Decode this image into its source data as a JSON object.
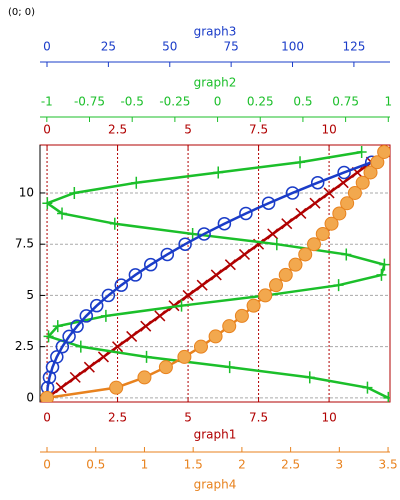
{
  "chart_data": {
    "type": "line",
    "annotation": "(0; 0)",
    "ylim": [
      -0.2,
      12.34
    ],
    "yticks": [
      0,
      2.5,
      5,
      7.5,
      10
    ],
    "grid": true,
    "x_axes": [
      {
        "label": "graph1",
        "color": "#b00000",
        "lim": [
          -0.25,
          12.16
        ],
        "ticks": [
          0,
          2.5,
          5,
          7.5,
          10
        ],
        "position": "bottom"
      },
      {
        "label": "graph2",
        "color": "#1bbf2a",
        "lim": [
          -1.04,
          1.01
        ],
        "ticks": [
          -1,
          -0.75,
          -0.5,
          -0.25,
          0,
          0.25,
          0.5,
          0.75,
          1
        ],
        "position": "top"
      },
      {
        "label": "graph3",
        "color": "#1a3cc8",
        "lim": [
          -2.85,
          139.7
        ],
        "ticks": [
          0,
          25,
          50,
          75,
          100,
          125
        ],
        "position": "top"
      },
      {
        "label": "graph4",
        "color": "#e8821e",
        "lim": [
          -0.072,
          3.52
        ],
        "ticks": [
          0,
          0.5,
          1,
          1.5,
          2,
          2.5,
          3,
          3.5
        ],
        "position": "bottom"
      }
    ],
    "series": [
      {
        "x_axis": 0,
        "color": "#b00000",
        "marker": "cross",
        "x": [
          0,
          0.5,
          1,
          1.5,
          2,
          2.5,
          3,
          3.5,
          4,
          4.5,
          5,
          5.5,
          6,
          6.5,
          7,
          7.5,
          8,
          8.5,
          9,
          9.5,
          10,
          10.5,
          11,
          11.5,
          12
        ],
        "values": [
          0,
          0.5,
          1,
          1.5,
          2,
          2.5,
          3,
          3.5,
          4,
          4.5,
          5,
          5.5,
          6,
          6.5,
          7,
          7.5,
          8,
          8.5,
          9,
          9.5,
          10,
          10.5,
          11,
          11.5,
          12
        ]
      },
      {
        "x_axis": 1,
        "color": "#1bbf2a",
        "marker": "plus",
        "x": [
          1,
          0.878,
          0.54,
          0.071,
          -0.416,
          -0.801,
          -0.99,
          -0.936,
          -0.654,
          -0.211,
          0.284,
          0.709,
          0.96,
          0.977,
          0.754,
          0.347,
          -0.146,
          -0.602,
          -0.911,
          -0.997,
          -0.839,
          -0.476,
          0.004,
          0.483,
          0.844
        ],
        "values": [
          0,
          0.5,
          1,
          1.5,
          2,
          2.5,
          3,
          3.5,
          4,
          4.5,
          5,
          5.5,
          6,
          6.5,
          7,
          7.5,
          8,
          8.5,
          9,
          9.5,
          10,
          10.5,
          11,
          11.5,
          12
        ]
      },
      {
        "x_axis": 2,
        "color": "#1a3cc8",
        "marker": "circle",
        "x": [
          0,
          0.25,
          1,
          2.25,
          4,
          6.25,
          9,
          12.25,
          16,
          20.25,
          25,
          30.25,
          36,
          42.25,
          49,
          56.25,
          64,
          72.25,
          81,
          90.25,
          100,
          110.25,
          121,
          132.25
        ],
        "values": [
          0,
          0.5,
          1,
          1.5,
          2,
          2.5,
          3,
          3.5,
          4,
          4.5,
          5,
          5.5,
          6,
          6.5,
          7,
          7.5,
          8,
          8.5,
          9,
          9.5,
          10,
          10.5,
          11,
          11.5
        ]
      },
      {
        "x_axis": 3,
        "color": "#e8821e",
        "marker": "disc",
        "x": [
          0,
          0.71,
          1,
          1.22,
          1.41,
          1.58,
          1.73,
          1.87,
          2,
          2.12,
          2.24,
          2.35,
          2.45,
          2.55,
          2.65,
          2.74,
          2.83,
          2.92,
          3,
          3.08,
          3.16,
          3.24,
          3.32,
          3.39,
          3.46
        ],
        "values": [
          0,
          0.5,
          1,
          1.5,
          2,
          2.5,
          3,
          3.5,
          4,
          4.5,
          5,
          5.5,
          6,
          6.5,
          7,
          7.5,
          8,
          8.5,
          9,
          9.5,
          10,
          10.5,
          11,
          11.5,
          12
        ]
      }
    ]
  }
}
